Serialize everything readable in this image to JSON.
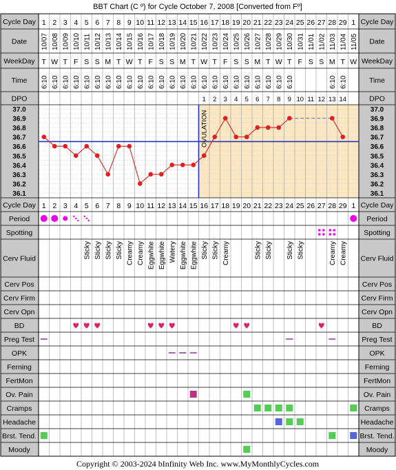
{
  "title": "BBT Chart (C º) for Cycle October 7, 2008  [Converted from Fº]",
  "footer": "Copyright © 2003-2024 bInfinity Web Inc.    www.MyMonthlyCycles.com",
  "colors": {
    "frame": "#000000",
    "label_bg": "#c8c8c8",
    "header_bg": "#ffffff",
    "grid": "#b0b0b0",
    "pre_ov_bg": "#ffffff",
    "post_ov_bg": "#fbe7c2",
    "line": "#e02020",
    "coverline": "#2233bb",
    "period": "#ee00ee",
    "bd": "#dd2266",
    "spotting": "#ee00ee",
    "green": "#55cc55",
    "blue": "#5566dd",
    "magenta_box": "#bb3388",
    "dash": "#7777dd"
  },
  "rows": {
    "cycle_day": "Cycle Day",
    "date": "Date",
    "weekday": "WeekDay",
    "time": "Time",
    "dpo": "DPO",
    "period": "Period",
    "spotting": "Spotting",
    "cerv_fluid": "Cerv Fluid",
    "cerv_pos": "Cerv Pos",
    "cerv_firm": "Cerv Firm",
    "cerv_opn": "Cerv Opn",
    "bd": "BD",
    "preg_test": "Preg Test",
    "opk": "OPK",
    "ferning": "Ferning",
    "fertmon": "FertMon",
    "ov_pain": "Ov. Pain",
    "cramps": "Cramps",
    "headache": "Headache",
    "brst_tend": "Brst. Tend.",
    "moody": "Moody"
  },
  "ovulation_label": "OVULATION",
  "days": [
    "1",
    "2",
    "3",
    "4",
    "5",
    "6",
    "7",
    "8",
    "9",
    "10",
    "11",
    "12",
    "13",
    "14",
    "15",
    "16",
    "17",
    "18",
    "19",
    "20",
    "21",
    "22",
    "23",
    "24",
    "25",
    "26",
    "27",
    "28",
    "29",
    "1"
  ],
  "dates": [
    "10/07",
    "10/08",
    "10/09",
    "10/10",
    "10/11",
    "10/12",
    "10/13",
    "10/14",
    "10/15",
    "10/16",
    "10/17",
    "10/18",
    "10/19",
    "10/20",
    "10/21",
    "10/22",
    "10/23",
    "10/24",
    "10/25",
    "10/26",
    "10/27",
    "10/28",
    "10/29",
    "10/30",
    "10/31",
    "11/01",
    "11/02",
    "11/03",
    "11/04",
    "11/05"
  ],
  "weekdays": [
    "T",
    "W",
    "T",
    "F",
    "S",
    "S",
    "M",
    "T",
    "W",
    "T",
    "F",
    "S",
    "S",
    "M",
    "T",
    "W",
    "T",
    "F",
    "S",
    "S",
    "M",
    "T",
    "W",
    "T",
    "F",
    "S",
    "S",
    "M",
    "T",
    "W"
  ],
  "times": [
    "6:10",
    "6:10",
    "6:10",
    "6:10",
    "6:10",
    "6:10",
    "6:10",
    "6:10",
    "6:10",
    "6:10",
    "6:10",
    "6:10",
    "6:10",
    "6:10",
    "6:10",
    "6:10",
    "6:10",
    "6:10",
    "6:10",
    "6:10",
    "6:10",
    "6:10",
    "6:10",
    "6:10",
    "",
    "",
    "",
    "6:10",
    "6:10",
    ""
  ],
  "dpo": [
    "",
    "",
    "",
    "",
    "",
    "",
    "",
    "",
    "",
    "",
    "",
    "",
    "",
    "",
    "",
    "1",
    "2",
    "3",
    "4",
    "5",
    "6",
    "7",
    "8",
    "9",
    "10",
    "11",
    "12",
    "13",
    "14",
    ""
  ],
  "cerv_fluid": [
    "",
    "",
    "",
    "",
    "Sticky",
    "Sticky",
    "Sticky",
    "Sticky",
    "Creamy",
    "Creamy",
    "Eggwhite",
    "Eggwhite",
    "Watery",
    "Eggwhite",
    "Eggwhite",
    "Sticky",
    "Sticky",
    "Creamy",
    "",
    "",
    "Sticky",
    "Sticky",
    "",
    "Sticky",
    "Sticky",
    "",
    "",
    "Creamy",
    "Creamy",
    ""
  ],
  "period": [
    "heavy",
    "heavy",
    "medium",
    "spot",
    "spot",
    "",
    "",
    "",
    "",
    "",
    "",
    "",
    "",
    "",
    "",
    "",
    "",
    "",
    "",
    "",
    "",
    "",
    "",
    "",
    "",
    "",
    "",
    "",
    "",
    "heavy"
  ],
  "spotting_days": [
    27,
    28
  ],
  "bd_days": [
    4,
    5,
    6,
    11,
    12,
    13,
    19,
    20,
    27
  ],
  "preg_test_days": [
    1,
    24,
    28
  ],
  "opk_days": [
    13,
    14,
    15
  ],
  "ov_pain": [
    {
      "day": 15,
      "color": "magenta"
    },
    {
      "day": 20,
      "color": "green"
    }
  ],
  "cramps": [
    {
      "day": 21,
      "color": "green"
    },
    {
      "day": 22,
      "color": "green"
    },
    {
      "day": 23,
      "color": "green"
    },
    {
      "day": 24,
      "color": "green"
    },
    {
      "day": 30,
      "color": "green"
    }
  ],
  "headache": [
    {
      "day": 23,
      "color": "blue"
    },
    {
      "day": 24,
      "color": "green"
    },
    {
      "day": 25,
      "color": "green"
    }
  ],
  "brst_tend": [
    {
      "day": 1,
      "color": "green"
    },
    {
      "day": 28,
      "color": "green"
    },
    {
      "day": 30,
      "color": "blue"
    }
  ],
  "moody": [
    {
      "day": 20,
      "color": "green"
    }
  ],
  "chart_data": {
    "type": "line",
    "title": "BBT Chart (C º) for Cycle October 7, 2008  [Converted from Fº]",
    "xlabel": "Cycle Day",
    "ylabel": "",
    "ylim": [
      36.1,
      37.0
    ],
    "yticks": [
      "37.0",
      "36.9",
      "36.8",
      "36.7",
      "36.6",
      "36.5",
      "36.4",
      "36.3",
      "36.2",
      "36.1"
    ],
    "coverline": 36.65,
    "ovulation_day": 15,
    "dashed_segment": {
      "from_day": 25,
      "to_day": 27,
      "value": 36.9
    },
    "x": [
      1,
      2,
      3,
      4,
      5,
      6,
      7,
      8,
      9,
      10,
      11,
      12,
      13,
      14,
      15,
      16,
      17,
      18,
      19,
      20,
      21,
      22,
      23,
      24,
      28,
      29
    ],
    "values": [
      36.7,
      36.6,
      36.6,
      36.5,
      36.6,
      36.5,
      36.3,
      36.6,
      36.6,
      36.2,
      36.3,
      36.3,
      36.4,
      36.4,
      36.4,
      36.5,
      36.7,
      36.9,
      36.7,
      36.7,
      36.8,
      36.8,
      36.8,
      36.9,
      36.9,
      36.7
    ]
  }
}
